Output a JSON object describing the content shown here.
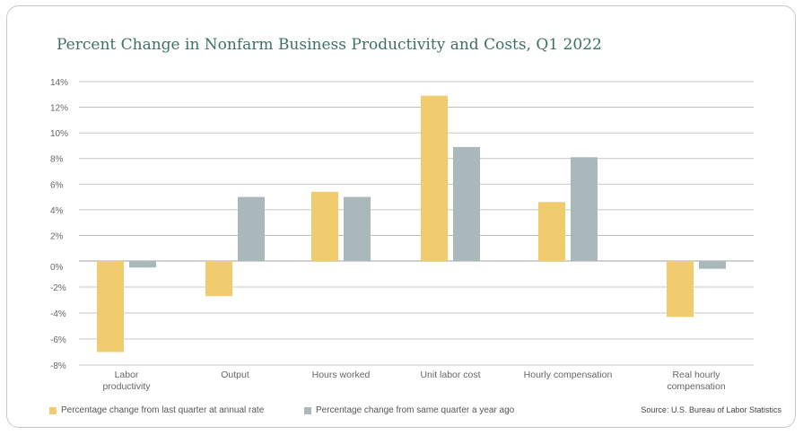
{
  "chart_data": {
    "type": "bar",
    "title": "Percent Change in Nonfarm Business Productivity and Costs, Q1 2022",
    "categories": [
      [
        "Labor",
        "productivity"
      ],
      [
        "Output"
      ],
      [
        "Hours worked"
      ],
      [
        "Unit labor cost"
      ],
      [
        "Hourly compensation"
      ],
      [
        "Real hourly",
        "compensation"
      ]
    ],
    "series": [
      {
        "name": "Percentage change from last quarter at annual rate",
        "color": "#f0cc6e",
        "values": [
          -7.0,
          -2.7,
          5.4,
          12.9,
          4.6,
          -4.3
        ]
      },
      {
        "name": "Percentage change from same quarter a year ago",
        "color": "#a9b9bb",
        "values": [
          -0.5,
          5.0,
          5.0,
          8.9,
          8.1,
          -0.6
        ]
      }
    ],
    "ylim": [
      -8,
      14
    ],
    "yticks": [
      14,
      12,
      10,
      8,
      6,
      4,
      2,
      0,
      -2,
      -4,
      -6,
      -8
    ],
    "ytick_labels": [
      "14%",
      "12%",
      "10%",
      "8%",
      "6%",
      "4%",
      "2%",
      "0%",
      "-2%",
      "-4%",
      "-6%",
      "-8%"
    ],
    "grid": true,
    "legend_position": "bottom-left",
    "source": "Source: U.S. Bureau of Labor Statistics"
  },
  "colors": {
    "grid": "#b5b5b5",
    "title": "#3f6f66",
    "axis_text": "#666666"
  }
}
